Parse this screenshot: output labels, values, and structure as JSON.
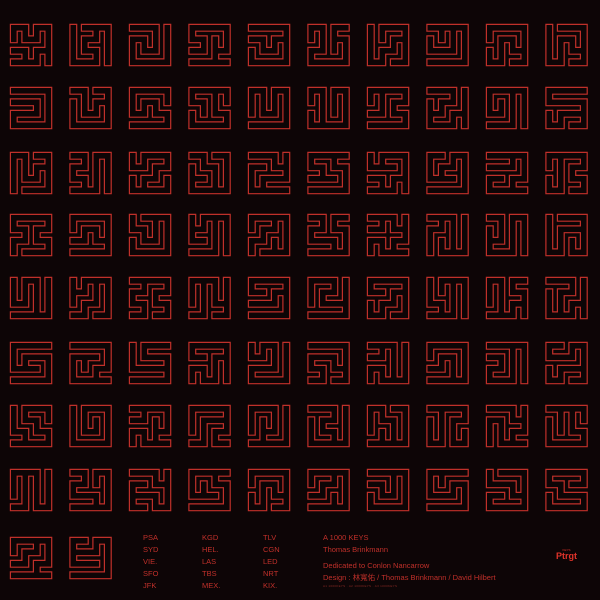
{
  "colors": {
    "background": "#0d0506",
    "line": "#c0302a"
  },
  "glyph_grid": {
    "rows": 9,
    "columns": 10,
    "last_row_count": 2
  },
  "codes": {
    "col1": [
      "PSA",
      "SYD",
      "VIE.",
      "SFO",
      "JFK"
    ],
    "col2": [
      "KGD",
      "HEL.",
      "LAS",
      "TBS",
      "MEX."
    ],
    "col3": [
      "TLV",
      "CGN",
      "LED",
      "NRT",
      "KIX."
    ]
  },
  "credits": {
    "title": "A 1000 KEYS",
    "artist": "Thomas Brinkmann",
    "dedication": "Dedicated to Conlon Nancarrow",
    "design": "Design : 林寬佑 / Thomas Brinkmann / David Hilbert",
    "fine_print": "A1 1000KEYS ·  A2 1000KEYS · A3 1000KEYS"
  },
  "logo": {
    "small_text": "KEYS",
    "text": "Ptrgt"
  }
}
